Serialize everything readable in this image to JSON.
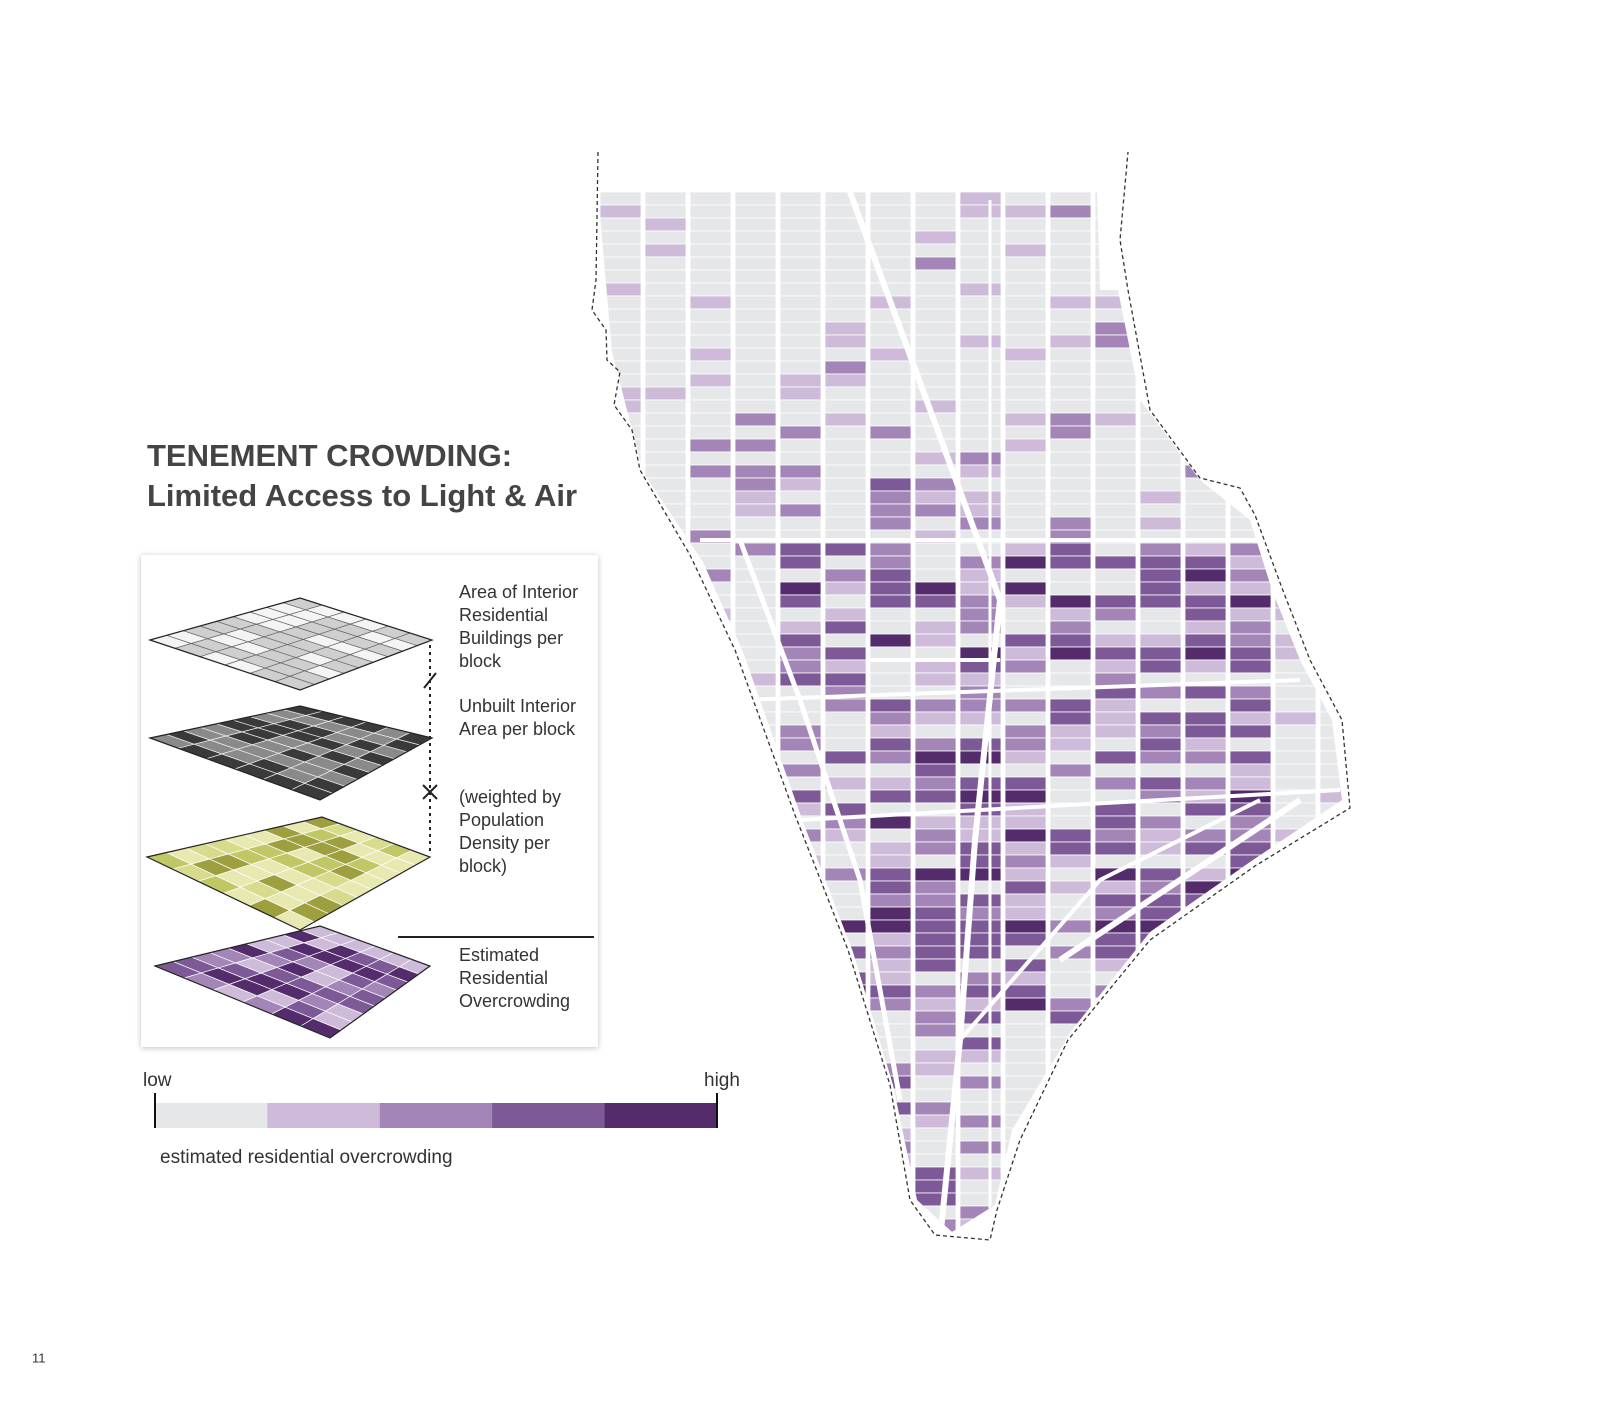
{
  "header": {
    "title": "TENEMENT CROWDING:",
    "subtitle": "Limited Access to Light & Air"
  },
  "layers": [
    {
      "lines": [
        "Area of Interior",
        "Residential",
        "Buildings per",
        "block"
      ]
    },
    {
      "lines": [
        "Unbuilt Interior",
        "Area per block"
      ]
    },
    {
      "lines": [
        "(weighted by",
        "Population",
        "Density per",
        "block)"
      ]
    },
    {
      "lines": [
        "Estimated",
        "Residential",
        "Overcrowding"
      ]
    }
  ],
  "legend": {
    "low": "low",
    "high": "high",
    "caption": "estimated residential overcrowding",
    "colors": [
      "#e6e7e8",
      "#cdbbd9",
      "#a385b8",
      "#7d5a97",
      "#542c6c"
    ]
  },
  "page_number": "11"
}
